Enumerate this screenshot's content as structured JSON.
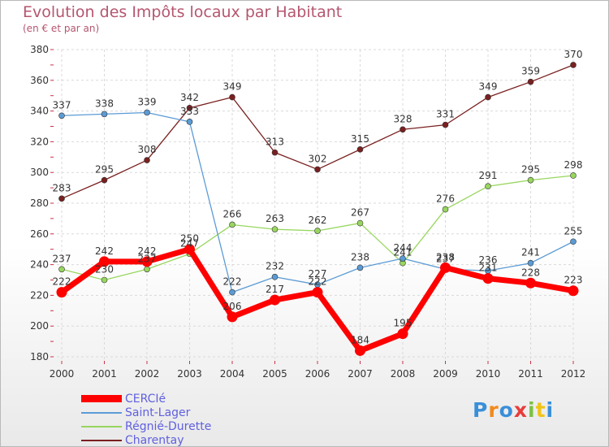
{
  "chart_data": {
    "type": "line",
    "title": "Evolution des Impôts locaux par Habitant",
    "subtitle": "(en € et par an)",
    "categories": [
      "2000",
      "2001",
      "2002",
      "2003",
      "2004",
      "2005",
      "2006",
      "2007",
      "2008",
      "2009",
      "2010",
      "2011",
      "2012"
    ],
    "ylim": [
      180,
      380
    ],
    "yticks": [
      180,
      200,
      220,
      240,
      260,
      280,
      300,
      320,
      340,
      360,
      380
    ],
    "grid": true,
    "legend_position": "bottom-left",
    "series": [
      {
        "name": "CERCIé",
        "color": "#ff0000",
        "values": [
          222,
          242,
          242,
          250,
          206,
          217,
          222,
          184,
          195,
          238,
          231,
          228,
          223
        ]
      },
      {
        "name": "Saint-Lager",
        "color": "#5b9bd5",
        "values": [
          337,
          338,
          339,
          333,
          222,
          232,
          227,
          238,
          244,
          237,
          236,
          241,
          255
        ]
      },
      {
        "name": "Régnié-Durette",
        "color": "#98d65f",
        "values": [
          237,
          230,
          237,
          247,
          266,
          263,
          262,
          267,
          241,
          276,
          291,
          295,
          298
        ]
      },
      {
        "name": "Charentay",
        "color": "#7a2020",
        "values": [
          283,
          295,
          308,
          342,
          349,
          313,
          302,
          315,
          328,
          331,
          349,
          359,
          370
        ]
      }
    ]
  },
  "logo": {
    "text": "Proxiti",
    "colors": [
      "#3a8fd9",
      "#f08a1c",
      "#3a8fd9",
      "#e83c3c",
      "#7cc142",
      "#f0c419",
      "#3a8fd9"
    ]
  }
}
